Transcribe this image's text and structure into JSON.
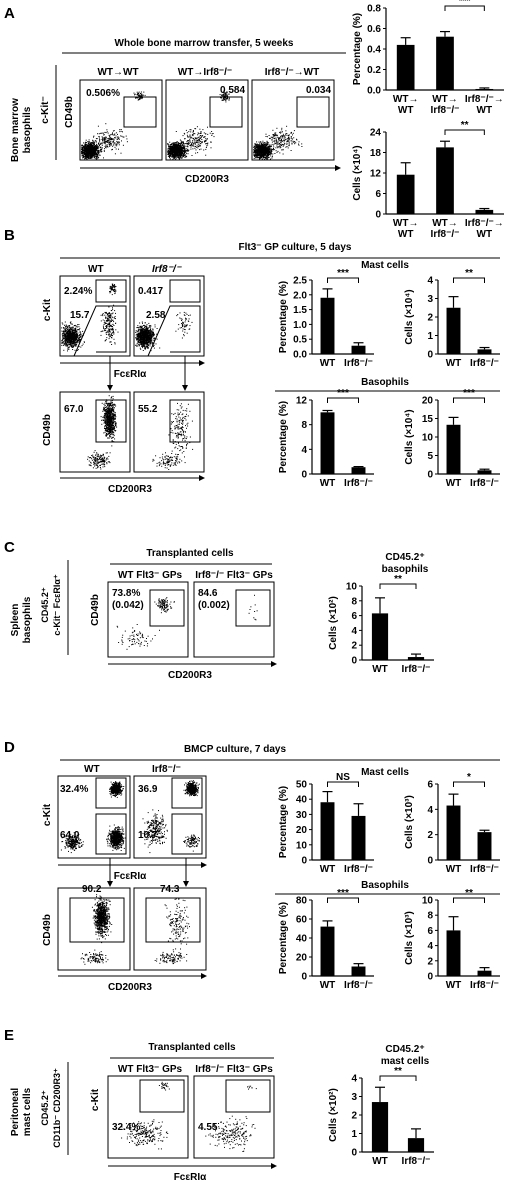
{
  "panels": {
    "A": {
      "letter": "A",
      "header": "Whole bone marrow transfer, 5 weeks",
      "side_label_1": "Bone marrow",
      "side_label_2": "basophils",
      "gate_label": "c-Kit⁻",
      "plots": [
        {
          "title": "WT→WT",
          "value": "0.506%"
        },
        {
          "title": "WT→Irf8⁻/⁻",
          "value": "0.584"
        },
        {
          "title": "Irf8⁻/⁻→WT",
          "value": "0.034"
        }
      ],
      "ylabel": "CD49b",
      "xlabel": "CD200R3"
    },
    "B": {
      "letter": "B",
      "header": "Flt3⁻ GP culture, 5 days",
      "top_plots": [
        {
          "title": "WT",
          "upper": "2.24%",
          "lower": "15.7"
        },
        {
          "title": "Irf8⁻/⁻",
          "upper": "0.417",
          "lower": "2.58"
        }
      ],
      "top_ylabel": "c-Kit",
      "top_xlabel": "FcεRIα",
      "bottom_plots": [
        {
          "value": "67.0"
        },
        {
          "value": "55.2"
        }
      ],
      "bottom_ylabel": "CD49b",
      "bottom_xlabel": "CD200R3",
      "mast_title": "Mast cells",
      "baso_title": "Basophils"
    },
    "C": {
      "letter": "C",
      "header": "Transplanted cells",
      "side_label_1": "Spleen",
      "side_label_2": "basophils",
      "gate_label_1": "CD45.2⁺",
      "gate_label_2": "c-Kit⁻ FcεRIα⁺",
      "plots": [
        {
          "title": "WT Flt3⁻ GPs",
          "value": "73.8%",
          "sub": "(0.042)"
        },
        {
          "title": "Irf8⁻/⁻ Flt3⁻ GPs",
          "value": "84.6",
          "sub": "(0.002)"
        }
      ],
      "ylabel": "CD49b",
      "xlabel": "CD200R3",
      "chart_title_1": "CD45.2⁺",
      "chart_title_2": "basophils"
    },
    "D": {
      "letter": "D",
      "header": "BMCP culture, 7 days",
      "top_plots": [
        {
          "title": "WT",
          "upper": "32.4%",
          "lower": "64.0"
        },
        {
          "title": "Irf8⁻/⁻",
          "upper": "36.9",
          "lower": "10.7"
        }
      ],
      "top_ylabel": "c-Kit",
      "top_xlabel": "FcεRIα",
      "bottom_plots": [
        {
          "value": "90.2"
        },
        {
          "value": "74.3"
        }
      ],
      "bottom_ylabel": "CD49b",
      "bottom_xlabel": "CD200R3",
      "mast_title": "Mast cells",
      "baso_title": "Basophils"
    },
    "E": {
      "letter": "E",
      "header": "Transplanted cells",
      "side_label_1": "Peritoneal",
      "side_label_2": "mast cells",
      "gate_label_1": "CD45.2⁺",
      "gate_label_2": "CD11b⁻ CD200R3⁺",
      "plots": [
        {
          "title": "WT Flt3⁻ GPs",
          "value": "32.4%"
        },
        {
          "title": "Irf8⁻/⁻ Flt3⁻ GPs",
          "value": "4.55"
        }
      ],
      "ylabel": "c-Kit",
      "xlabel": "FcεRIα",
      "chart_title_1": "CD45.2⁺",
      "chart_title_2": "mast cells"
    }
  },
  "chart_data": [
    {
      "id": "A-pct",
      "type": "bar",
      "categories": [
        "WT→WT",
        "WT→Irf8⁻/⁻",
        "Irf8⁻/⁻→WT"
      ],
      "values": [
        0.44,
        0.52,
        0.01
      ],
      "errors": [
        0.07,
        0.05,
        0.01
      ],
      "ylabel": "Percentage (%)",
      "ylim": [
        0,
        0.8
      ],
      "ticks": [
        "0.0",
        "0.2",
        "0.4",
        "0.6",
        "0.8"
      ],
      "sig": [
        {
          "from": 1,
          "to": 2,
          "label": "***"
        }
      ]
    },
    {
      "id": "A-cells",
      "type": "bar",
      "categories": [
        "WT→WT",
        "WT→Irf8⁻/⁻",
        "Irf8⁻/⁻→WT"
      ],
      "values": [
        11.5,
        19.5,
        1.2
      ],
      "errors": [
        3.5,
        1.8,
        0.4
      ],
      "ylabel": "Cells (×10⁴)",
      "ylim": [
        0,
        24
      ],
      "ticks": [
        "0",
        "6",
        "12",
        "18",
        "24"
      ],
      "sig": [
        {
          "from": 1,
          "to": 2,
          "label": "**"
        }
      ]
    },
    {
      "id": "B-mast-pct",
      "type": "bar",
      "categories": [
        "WT",
        "Irf8⁻/⁻"
      ],
      "values": [
        1.9,
        0.28
      ],
      "errors": [
        0.3,
        0.1
      ],
      "ylabel": "Percentage (%)",
      "ylim": [
        0,
        2.5
      ],
      "ticks": [
        "0.0",
        "0.5",
        "1.0",
        "1.5",
        "2.0",
        "2.5"
      ],
      "sig": [
        {
          "from": 0,
          "to": 1,
          "label": "***"
        }
      ]
    },
    {
      "id": "B-mast-cells",
      "type": "bar",
      "categories": [
        "WT",
        "Irf8⁻/⁻"
      ],
      "values": [
        2.5,
        0.25
      ],
      "errors": [
        0.6,
        0.1
      ],
      "ylabel": "Cells (×10⁴)",
      "ylim": [
        0,
        4
      ],
      "ticks": [
        "0",
        "1",
        "2",
        "3",
        "4"
      ],
      "sig": [
        {
          "from": 0,
          "to": 1,
          "label": "**"
        }
      ]
    },
    {
      "id": "B-baso-pct",
      "type": "bar",
      "categories": [
        "WT",
        "Irf8⁻/⁻"
      ],
      "values": [
        10.0,
        1.1
      ],
      "errors": [
        0.3,
        0.1
      ],
      "ylabel": "Percentage (%)",
      "ylim": [
        0,
        12
      ],
      "ticks": [
        "0",
        "4",
        "8",
        "12"
      ],
      "sig": [
        {
          "from": 0,
          "to": 1,
          "label": "***"
        }
      ]
    },
    {
      "id": "B-baso-cells",
      "type": "bar",
      "categories": [
        "WT",
        "Irf8⁻/⁻"
      ],
      "values": [
        13.3,
        1.0
      ],
      "errors": [
        2.0,
        0.3
      ],
      "ylabel": "Cells (×10⁴)",
      "ylim": [
        0,
        20
      ],
      "ticks": [
        "0",
        "5",
        "10",
        "15",
        "20"
      ],
      "sig": [
        {
          "from": 0,
          "to": 1,
          "label": "***"
        }
      ]
    },
    {
      "id": "C-cells",
      "type": "bar",
      "categories": [
        "WT",
        "Irf8⁻/⁻"
      ],
      "values": [
        6.3,
        0.4
      ],
      "errors": [
        2.1,
        0.4
      ],
      "ylabel": "Cells (×10²)",
      "ylim": [
        0,
        10
      ],
      "ticks": [
        "0",
        "2",
        "4",
        "6",
        "8",
        "10"
      ],
      "sig": [
        {
          "from": 0,
          "to": 1,
          "label": "**"
        }
      ]
    },
    {
      "id": "D-mast-pct",
      "type": "bar",
      "categories": [
        "WT",
        "Irf8⁻/⁻"
      ],
      "values": [
        38,
        29
      ],
      "errors": [
        7,
        8
      ],
      "ylabel": "Percentage (%)",
      "ylim": [
        0,
        50
      ],
      "ticks": [
        "0",
        "10",
        "20",
        "30",
        "40",
        "50"
      ],
      "sig": [
        {
          "from": 0,
          "to": 1,
          "label": "NS"
        }
      ]
    },
    {
      "id": "D-mast-cells",
      "type": "bar",
      "categories": [
        "WT",
        "Irf8⁻/⁻"
      ],
      "values": [
        4.3,
        2.2
      ],
      "errors": [
        0.9,
        0.15
      ],
      "ylabel": "Cells (×10³)",
      "ylim": [
        0,
        6
      ],
      "ticks": [
        "0",
        "2",
        "4",
        "6"
      ],
      "sig": [
        {
          "from": 0,
          "to": 1,
          "label": "*"
        }
      ]
    },
    {
      "id": "D-baso-pct",
      "type": "bar",
      "categories": [
        "WT",
        "Irf8⁻/⁻"
      ],
      "values": [
        52,
        10
      ],
      "errors": [
        6,
        3
      ],
      "ylabel": "Percentage (%)",
      "ylim": [
        0,
        80
      ],
      "ticks": [
        "0",
        "20",
        "40",
        "60",
        "80"
      ],
      "sig": [
        {
          "from": 0,
          "to": 1,
          "label": "***"
        }
      ]
    },
    {
      "id": "D-baso-cells",
      "type": "bar",
      "categories": [
        "WT",
        "Irf8⁻/⁻"
      ],
      "values": [
        6.0,
        0.7
      ],
      "errors": [
        1.8,
        0.4
      ],
      "ylabel": "Cells (×10³)",
      "ylim": [
        0,
        10
      ],
      "ticks": [
        "0",
        "2",
        "4",
        "6",
        "8",
        "10"
      ],
      "sig": [
        {
          "from": 0,
          "to": 1,
          "label": "**"
        }
      ]
    },
    {
      "id": "E-cells",
      "type": "bar",
      "categories": [
        "WT",
        "Irf8⁻/⁻"
      ],
      "values": [
        2.7,
        0.75
      ],
      "errors": [
        0.8,
        0.5
      ],
      "ylabel": "Cells (×10²)",
      "ylim": [
        0,
        4
      ],
      "ticks": [
        "0",
        "1",
        "2",
        "3",
        "4"
      ],
      "sig": [
        {
          "from": 0,
          "to": 1,
          "label": "**"
        }
      ]
    }
  ]
}
